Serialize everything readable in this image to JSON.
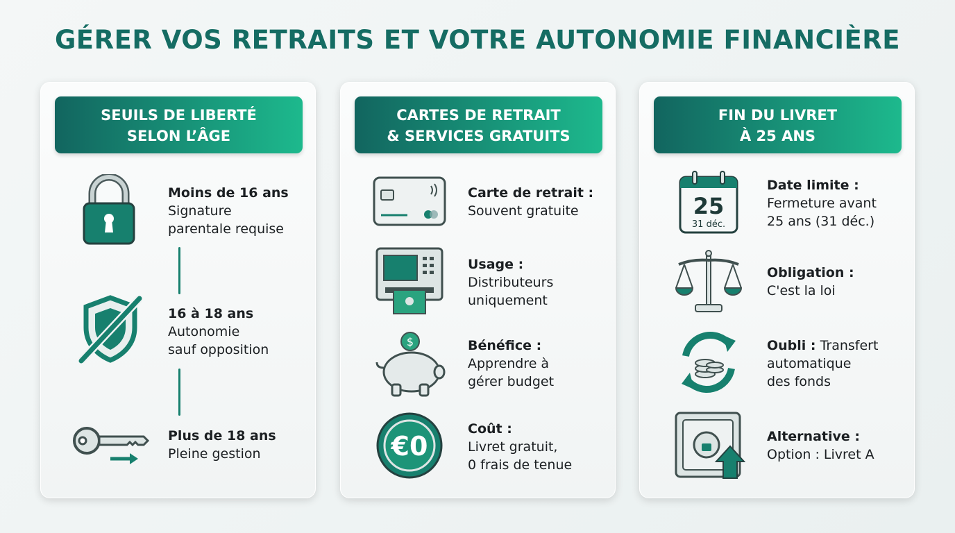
{
  "title": "GÉRER VOS RETRAITS ET VOTRE AUTONOMIE FINANCIÈRE",
  "colors": {
    "title": "#156c63",
    "header_start": "#12655f",
    "header_end": "#1db98d",
    "icon": "#17806e"
  },
  "cards": [
    {
      "header": [
        "SEUILS DE LIBERTÉ",
        "SELON L’ÂGE"
      ],
      "items": [
        {
          "icon": "padlock-icon",
          "label": "Moins de 16 ans",
          "lines": [
            "Signature",
            "parentale requise"
          ]
        },
        {
          "icon": "crossed-shield-icon",
          "label": "16 à 18 ans",
          "lines": [
            "Autonomie",
            "sauf opposition"
          ]
        },
        {
          "icon": "key-icon",
          "label": "Plus de 18 ans",
          "lines": [
            "Pleine gestion"
          ]
        }
      ]
    },
    {
      "header": [
        "CARTES DE RETRAIT",
        "& SERVICES GRATUITS"
      ],
      "items": [
        {
          "icon": "bank-card-icon",
          "label": "Carte de retrait :",
          "lines": [
            "Souvent gratuite"
          ]
        },
        {
          "icon": "atm-icon",
          "label": "Usage :",
          "lines": [
            "Distributeurs",
            "uniquement"
          ]
        },
        {
          "icon": "piggy-bank-icon",
          "label": "Bénéfice :",
          "lines": [
            "Apprendre à",
            "gérer budget"
          ]
        },
        {
          "icon": "zero-euro-coin-icon",
          "coin_text": "€0",
          "label": "Coût :",
          "lines": [
            "Livret gratuit,",
            "0 frais de tenue"
          ]
        }
      ]
    },
    {
      "header": [
        "FIN DU LIVRET",
        "À 25 ANS"
      ],
      "items": [
        {
          "icon": "calendar-icon",
          "calendar_day": "25",
          "calendar_date": "31 déc.",
          "label": "Date limite :",
          "lines": [
            "Fermeture avant",
            "25 ans (31 déc.)"
          ]
        },
        {
          "icon": "scales-of-justice-icon",
          "label": "Obligation :",
          "lines": [
            "C'est la loi"
          ]
        },
        {
          "icon": "transfer-coins-icon",
          "label": "Oubli :",
          "lines": [
            "Transfert",
            "automatique",
            "des fonds"
          ]
        },
        {
          "icon": "safe-upgrade-icon",
          "label": "Alternative :",
          "lines": [
            "Option : Livret A"
          ]
        }
      ]
    }
  ]
}
